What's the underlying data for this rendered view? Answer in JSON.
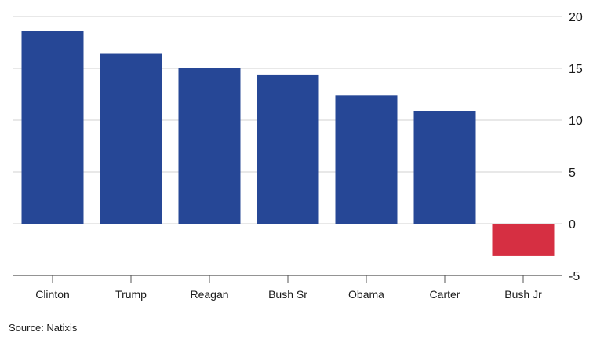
{
  "chart_data": {
    "type": "bar",
    "categories": [
      "Clinton",
      "Trump",
      "Reagan",
      "Bush Sr",
      "Obama",
      "Carter",
      "Bush Jr"
    ],
    "values": [
      18.6,
      16.4,
      15.0,
      14.4,
      12.4,
      10.9,
      -3.1
    ],
    "ylim": [
      -5,
      20
    ],
    "yticks": [
      20,
      15,
      10,
      5,
      0,
      -5
    ],
    "y_axis_side": "right",
    "grid": true,
    "colors": {
      "positive": "#264796",
      "negative": "#d62f42",
      "grid": "#d0d0d0",
      "axis": "#555555"
    },
    "source": "Source: Natixis"
  }
}
